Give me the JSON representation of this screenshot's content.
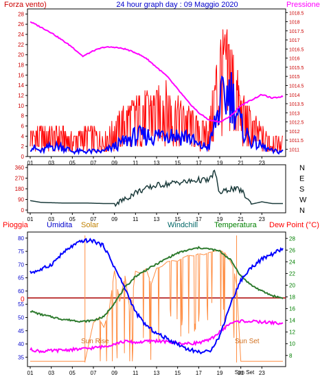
{
  "chart_data": [
    {
      "type": "line",
      "labels": {
        "left": "Forza vento)",
        "center": "24 hour graph day : 09 Maggio 2020",
        "right": "Pressione"
      },
      "x_ticks": [
        "01",
        "03",
        "05",
        "07",
        "09",
        "11",
        "13",
        "15",
        "17",
        "19",
        "21",
        "23"
      ],
      "left_axis": {
        "ticks": [
          0,
          2,
          4,
          6,
          8,
          10,
          12,
          14,
          16,
          18,
          20,
          22,
          24,
          26,
          28
        ],
        "ylim": [
          0,
          29
        ]
      },
      "right_axis": {
        "ticks": [
          1011,
          1011.5,
          1012,
          1012.5,
          1013,
          1013.5,
          1014,
          1014.5,
          1015,
          1015.5,
          1016,
          1016.5,
          1017,
          1017.5,
          1018,
          1018.5
        ],
        "ylim": [
          1010.6,
          1018.7
        ]
      },
      "colors": {
        "gust": "#ff0000",
        "wind": "#0000ff",
        "pressure": "#ff00ff",
        "axis_left": "#cc0000",
        "axis_right": "#cc0000",
        "center": "#0000cc"
      },
      "series": [
        {
          "key": "gust",
          "x": [
            0,
            1,
            2,
            3,
            4,
            5,
            6,
            7,
            8,
            9,
            10,
            11,
            12,
            13,
            14,
            15,
            16,
            17,
            18,
            19,
            20,
            21,
            22,
            23,
            24
          ],
          "values": [
            4,
            4,
            4,
            4,
            3,
            4,
            4,
            3,
            5,
            7,
            8,
            9,
            9,
            10,
            8,
            7,
            5,
            5,
            17,
            17,
            9,
            6,
            4,
            3,
            3
          ]
        },
        {
          "key": "wind",
          "x": [
            0,
            1,
            2,
            3,
            4,
            5,
            6,
            7,
            8,
            9,
            10,
            11,
            12,
            13,
            14,
            15,
            16,
            17,
            18,
            19,
            20,
            21,
            22,
            23,
            24
          ],
          "values": [
            2,
            1,
            2,
            2,
            1,
            1,
            1,
            1,
            2,
            3,
            4,
            4,
            4,
            5,
            4,
            4,
            2,
            2,
            10,
            13,
            6,
            3,
            2,
            1,
            1
          ]
        },
        {
          "key": "pressure",
          "x": [
            0,
            1,
            2,
            3,
            4,
            5,
            6,
            7,
            8,
            9,
            10,
            11,
            12,
            13,
            14,
            15,
            16,
            17,
            18,
            19,
            20,
            21,
            22,
            23,
            24
          ],
          "values": [
            1018.0,
            1017.7,
            1017.4,
            1017.0,
            1016.6,
            1016.1,
            1016.4,
            1016.6,
            1016.6,
            1016.5,
            1016.3,
            1016.0,
            1015.5,
            1015.0,
            1014.3,
            1013.6,
            1013.0,
            1012.6,
            1012.5,
            1012.8,
            1013.4,
            1013.7,
            1014.0,
            1013.8,
            1013.9
          ]
        }
      ]
    },
    {
      "type": "line",
      "labels": {
        "dirs": [
          "N",
          "W",
          "S",
          "E",
          "N"
        ]
      },
      "x_ticks": [
        "01",
        "03",
        "05",
        "07",
        "09",
        "11",
        "13",
        "15",
        "17",
        "19",
        "21",
        "23"
      ],
      "left_axis": {
        "ticks": [
          0,
          90,
          180,
          270,
          360
        ],
        "ylim": [
          0,
          360
        ]
      },
      "colors": {
        "line": "#1a3a3a",
        "axis": "#cc0000",
        "dirs": "#000000"
      },
      "series": [
        {
          "key": "direction",
          "x": [
            0,
            1,
            2,
            3,
            4,
            5,
            6,
            7,
            8,
            9,
            10,
            11,
            12,
            13,
            14,
            15,
            16,
            17,
            17.5,
            18,
            19,
            20,
            21,
            22,
            23,
            24
          ],
          "values": [
            80,
            65,
            62,
            60,
            60,
            60,
            58,
            55,
            55,
            90,
            150,
            180,
            210,
            220,
            235,
            240,
            255,
            250,
            330,
            140,
            180,
            170,
            50,
            70,
            55,
            55
          ]
        }
      ]
    },
    {
      "type": "line",
      "labels": {
        "pioggia": "Pioggia",
        "umidita": "Umidita",
        "solar": "Solar",
        "windchill": "Windchill",
        "temperatura": "Temperatura",
        "dewpoint": "Dew Point (°C)",
        "zero": "0",
        "sunrise": "Sun Rise",
        "sunset": "Sun Set",
        "sunrise_tick": "",
        "sunset_tick": "Sun Set"
      },
      "x_ticks": [
        "01",
        "03",
        "05",
        "07",
        "09",
        "11",
        "13",
        "15",
        "17",
        "19",
        "21",
        "23"
      ],
      "left_axis": {
        "ticks": [
          35,
          40,
          45,
          50,
          55,
          60,
          65,
          70,
          75,
          80
        ],
        "ylim": [
          33,
          81
        ]
      },
      "right_axis": {
        "ticks": [
          8,
          10,
          12,
          14,
          16,
          18,
          20,
          22,
          24,
          26,
          28
        ],
        "ylim": [
          6.8,
          28.5
        ]
      },
      "sunrise_hour": 5.2,
      "sunset_hour": 19.6,
      "colors": {
        "pioggia": "#ff0000",
        "umidita": "#0000cc",
        "solar": "#c08000",
        "windchill": "#006666",
        "temperatura": "#008000",
        "dewpoint": "#ff0000",
        "humidity_line": "#0000ff",
        "temp_line": "#2d7a2d",
        "dew_line": "#ff00ff",
        "solar_line": "#ff8c40",
        "rain_line": "#aa0000",
        "sun_label": "#d07020"
      },
      "series": [
        {
          "key": "humidity",
          "x": [
            0,
            1,
            2,
            3,
            4,
            5,
            6,
            7,
            8,
            9,
            10,
            11,
            12,
            13,
            14,
            15,
            16,
            17,
            18,
            19,
            20,
            21,
            22,
            23,
            24
          ],
          "values": [
            67,
            68,
            70,
            74,
            77,
            79,
            79,
            77,
            69,
            61,
            52,
            47,
            44,
            42,
            40,
            38,
            37,
            37,
            43,
            55,
            64,
            69,
            72,
            74,
            76
          ]
        },
        {
          "key": "temperature",
          "x": [
            0,
            1,
            2,
            3,
            4,
            5,
            6,
            7,
            8,
            9,
            10,
            11,
            12,
            13,
            14,
            15,
            16,
            17,
            18,
            19,
            20,
            21,
            22,
            23,
            24
          ],
          "values": [
            15.6,
            15.0,
            14.6,
            14.2,
            14.0,
            13.8,
            14.0,
            14.6,
            17.0,
            19.6,
            21.5,
            22.6,
            23.6,
            24.6,
            25.5,
            26.0,
            26.4,
            26.2,
            25.8,
            24.4,
            21.6,
            20.0,
            19.0,
            18.2,
            17.8
          ]
        },
        {
          "key": "dewpoint",
          "x": [
            0,
            1,
            2,
            3,
            4,
            5,
            6,
            7,
            8,
            9,
            10,
            11,
            12,
            13,
            14,
            15,
            16,
            17,
            18,
            19,
            20,
            21,
            22,
            23,
            24
          ],
          "values": [
            9.0,
            8.7,
            8.8,
            8.9,
            9.0,
            9.1,
            9.3,
            9.5,
            10.0,
            10.4,
            10.2,
            10.4,
            10.5,
            10.3,
            10.1,
            10.0,
            10.2,
            10.6,
            12.0,
            13.5,
            13.9,
            13.8,
            13.7,
            13.6,
            13.4
          ]
        },
        {
          "key": "solar",
          "x": [
            0,
            5.2,
            6,
            6.5,
            7,
            7.5,
            8,
            8.5,
            9,
            9.5,
            10,
            10.5,
            11,
            11.5,
            12,
            12.5,
            13,
            13.5,
            14,
            14.5,
            15,
            15.5,
            16,
            16.5,
            17,
            17.5,
            18,
            18.5,
            19,
            19.3,
            19.6,
            20,
            24
          ],
          "values": [
            7,
            7,
            13.6,
            14.4,
            12.8,
            15.8,
            22.5,
            17.2,
            21.6,
            15.4,
            22.4,
            22.0,
            22.8,
            20.2,
            22.9,
            23.2,
            24.0,
            24.2,
            24.1,
            24.7,
            25.1,
            25.0,
            25.4,
            25.2,
            25.6,
            25.8,
            26.0,
            25.5,
            24.1,
            23.0,
            20.0,
            7,
            7
          ]
        }
      ]
    }
  ]
}
